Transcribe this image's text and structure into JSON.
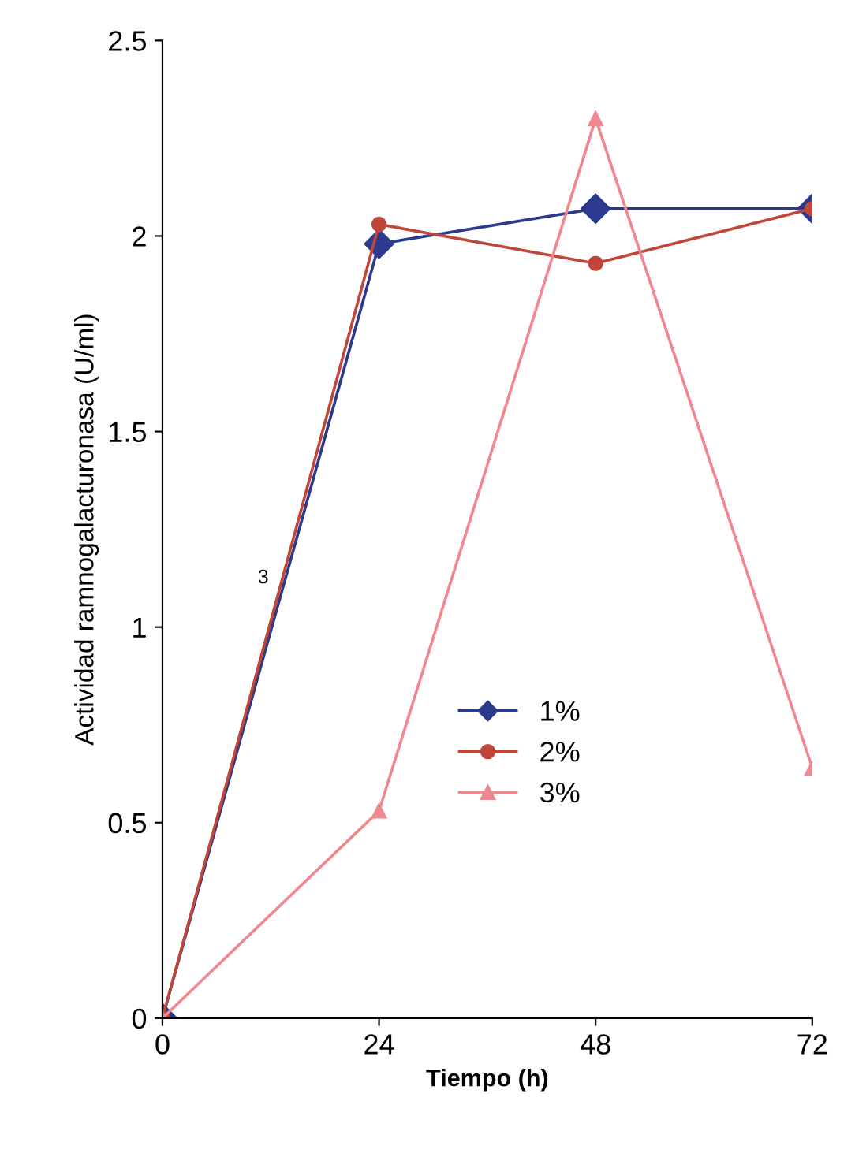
{
  "chart_data": {
    "type": "line",
    "xlabel": "Tiempo (h)",
    "ylabel": "Actividad ramnogalacturonasa (U/ml)",
    "x": [
      0,
      24,
      48,
      72
    ],
    "xlim": [
      0,
      72
    ],
    "xticks": [
      0,
      24,
      48,
      72
    ],
    "ylim": [
      0,
      2.5
    ],
    "yticks": [
      0,
      0.5,
      1,
      1.5,
      2,
      2.5
    ],
    "grid": false,
    "legend": "center",
    "line_style": "solid",
    "series": [
      {
        "name": "1%",
        "color": "#2b3a8c",
        "marker": "diamond",
        "values": [
          0,
          1.98,
          2.07,
          2.07
        ]
      },
      {
        "name": "2%",
        "color": "#c0463a",
        "marker": "circle",
        "values": [
          0,
          2.03,
          1.93,
          2.07
        ]
      },
      {
        "name": "3%",
        "color": "#f08890",
        "marker": "triangle",
        "values": [
          0,
          0.53,
          2.3,
          0.64
        ]
      }
    ],
    "annotations": [
      "3"
    ]
  }
}
